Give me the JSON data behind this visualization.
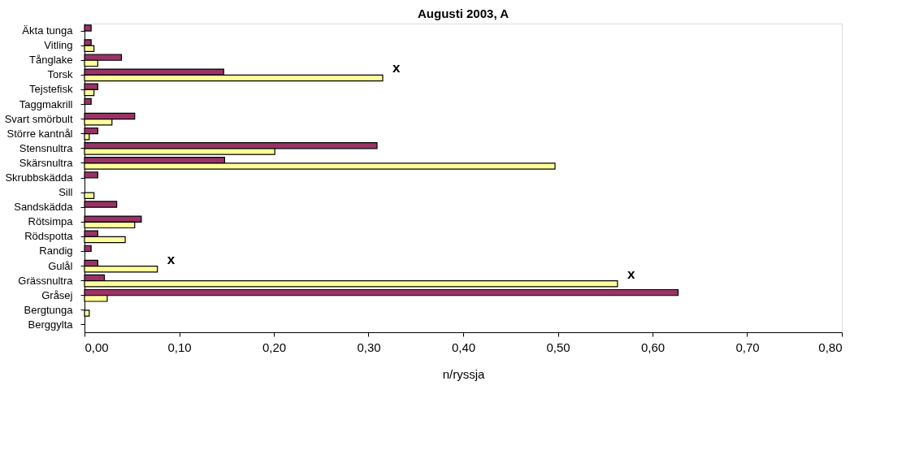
{
  "chart_data": {
    "type": "bar",
    "orientation": "horizontal",
    "title": "Augusti 2003, A",
    "xlabel": "n/ryssja",
    "categories": [
      "Äkta tunga",
      "Vitling",
      "Tånglake",
      "Torsk",
      "Tejstefisk",
      "Taggmakrill",
      "Svart smörbult",
      "Större kantnål",
      "Stensnultra",
      "Skärsnultra",
      "Skrubbskädda",
      "Sill",
      "Sandskädda",
      "Rötsimpa",
      "Rödspotta",
      "Randig",
      "Gulål",
      "Grässnultra",
      "Gråsej",
      "Bergtunga",
      "Berggylta"
    ],
    "series": [
      {
        "color": "#993366",
        "values": [
          0.007,
          0.007,
          0.039,
          0.147,
          0.014,
          0.007,
          0.053,
          0.014,
          0.309,
          0.148,
          0.014,
          null,
          0.034,
          0.06,
          0.014,
          0.007,
          0.014,
          0.021,
          0.627,
          null,
          null
        ]
      },
      {
        "color": "#ffff99",
        "values": [
          null,
          0.01,
          0.014,
          0.315,
          0.01,
          null,
          0.029,
          0.005,
          0.201,
          0.497,
          null,
          0.01,
          null,
          0.053,
          0.043,
          null,
          0.077,
          0.563,
          0.024,
          0.005,
          null
        ]
      }
    ],
    "xlim": [
      0,
      0.8
    ],
    "xticks": [
      {
        "value": 0,
        "label": "0,00"
      },
      {
        "value": 0.1,
        "label": "0,10"
      },
      {
        "value": 0.2,
        "label": "0,20"
      },
      {
        "value": 0.3,
        "label": "0,30"
      },
      {
        "value": 0.4,
        "label": "0,40"
      },
      {
        "value": 0.5,
        "label": "0,50"
      },
      {
        "value": 0.6,
        "label": "0,60"
      },
      {
        "value": 0.7,
        "label": "0,70"
      },
      {
        "value": 0.8,
        "label": "0,80"
      }
    ],
    "annotations": [
      {
        "text": "x",
        "x": 0.315,
        "y": "Torsk"
      },
      {
        "text": "x",
        "x": 0.077,
        "y": "Gulål"
      },
      {
        "text": "x",
        "x": 0.563,
        "y": "Grässnultra"
      }
    ],
    "grid": false,
    "legend": false
  }
}
